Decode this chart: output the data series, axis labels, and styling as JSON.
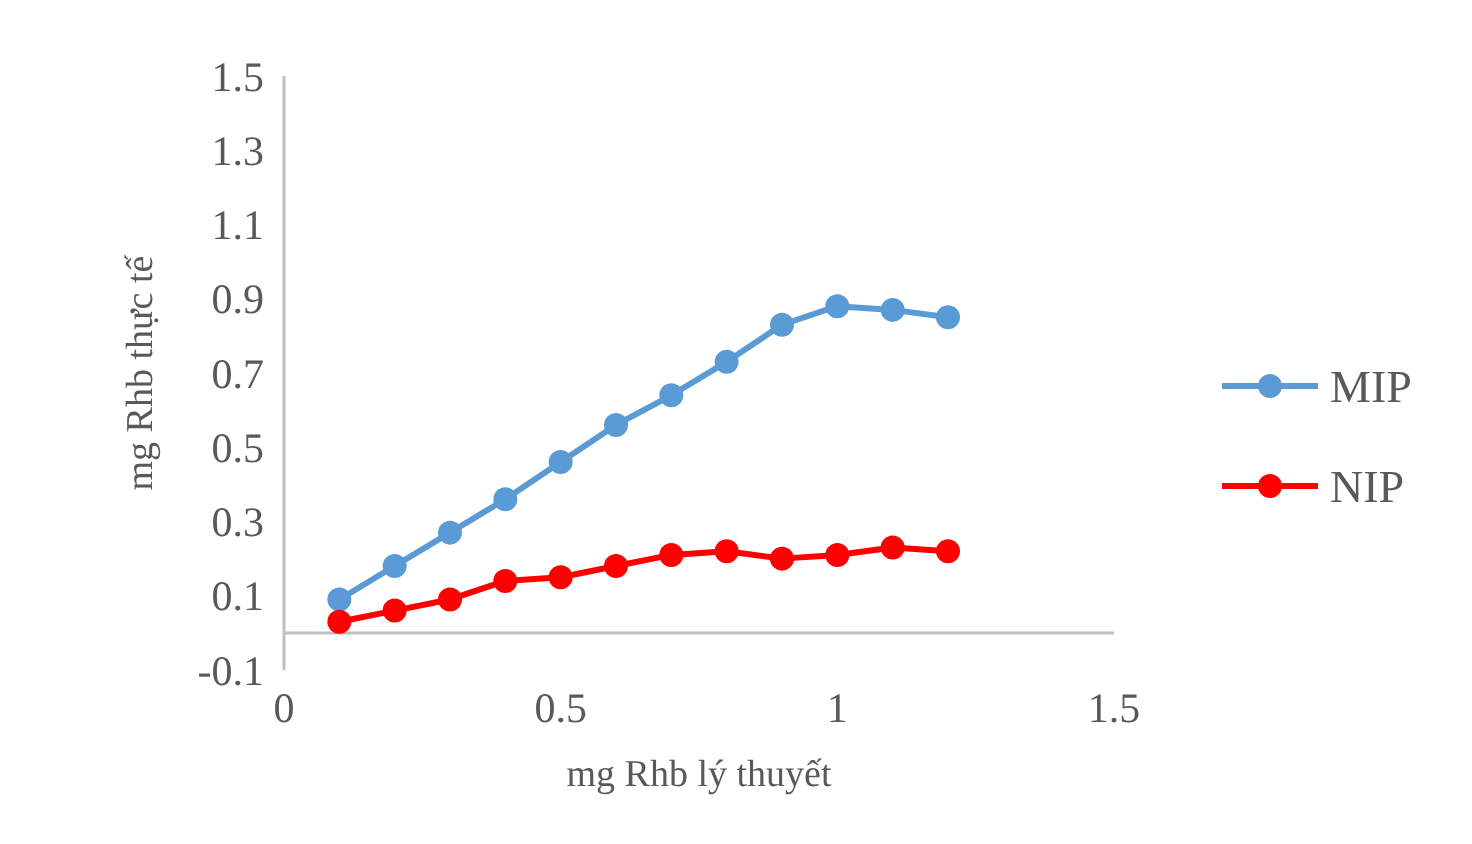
{
  "chart_data": {
    "type": "line",
    "xlabel": "mg Rhb lý thuyết",
    "ylabel": "mg Rhb thực tế",
    "x": [
      0.1,
      0.2,
      0.3,
      0.4,
      0.5,
      0.6,
      0.7,
      0.8,
      0.9,
      1.0,
      1.1,
      1.2
    ],
    "series": [
      {
        "name": "MIP",
        "color": "#5b9bd5",
        "values": [
          0.09,
          0.18,
          0.27,
          0.36,
          0.46,
          0.56,
          0.64,
          0.73,
          0.83,
          0.88,
          0.87,
          0.85
        ]
      },
      {
        "name": "NIP",
        "color": "#ff0000",
        "values": [
          0.03,
          0.06,
          0.09,
          0.14,
          0.15,
          0.18,
          0.21,
          0.22,
          0.2,
          0.21,
          0.23,
          0.22
        ]
      }
    ],
    "xlim": [
      0,
      1.5
    ],
    "xticks": [
      0,
      0.5,
      1,
      1.5
    ],
    "ylim": [
      -0.1,
      1.5
    ],
    "yticks": [
      -0.1,
      0.1,
      0.3,
      0.5,
      0.7,
      0.9,
      1.1,
      1.3,
      1.5
    ],
    "grid": false,
    "legend": "right",
    "marker": "circle",
    "line_style": "solid"
  }
}
